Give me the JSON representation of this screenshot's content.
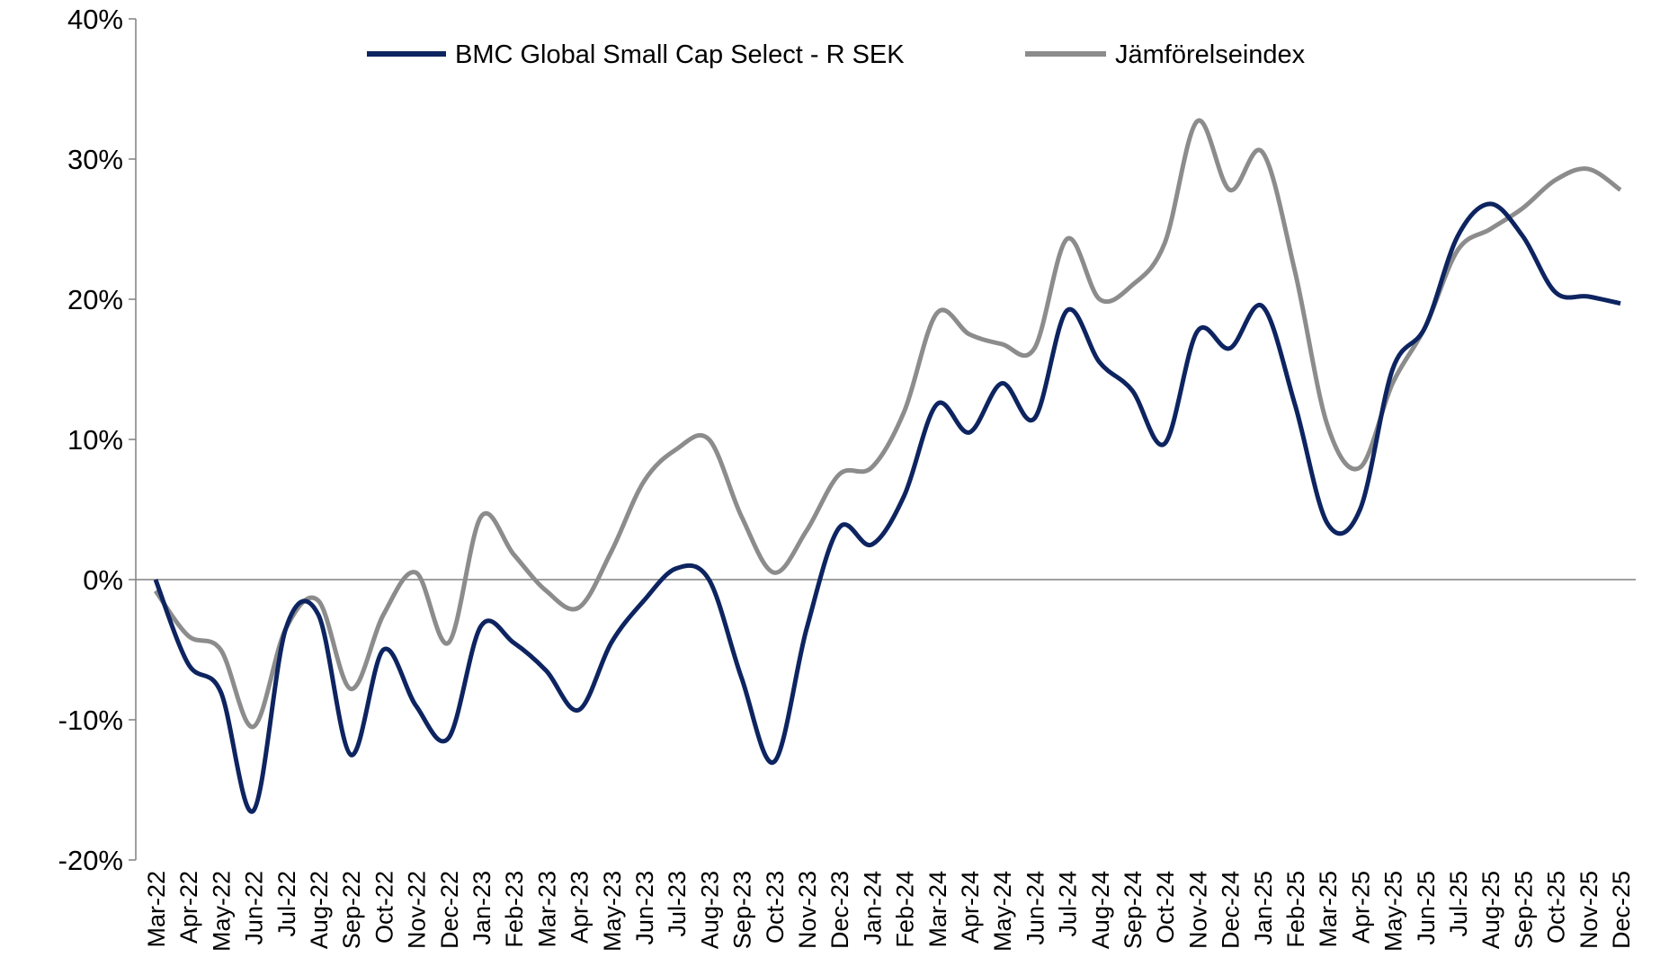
{
  "chart_data": {
    "type": "line",
    "title": "",
    "xlabel": "",
    "ylabel": "",
    "ylim": [
      -20,
      40
    ],
    "yticks": [
      "-20%",
      "-10%",
      "0%",
      "10%",
      "20%",
      "30%",
      "40%"
    ],
    "ytick_values": [
      -20,
      -10,
      0,
      10,
      20,
      30,
      40
    ],
    "legend_position": "top",
    "x": [
      "Mar-22",
      "Apr-22",
      "May-22",
      "Jun-22",
      "Jul-22",
      "Aug-22",
      "Sep-22",
      "Oct-22",
      "Nov-22",
      "Dec-22",
      "Jan-23",
      "Feb-23",
      "Mar-23",
      "Apr-23",
      "May-23",
      "Jun-23",
      "Jul-23",
      "Aug-23",
      "Sep-23",
      "Oct-23",
      "Nov-23",
      "Dec-23",
      "Jan-24",
      "Feb-24",
      "Mar-24",
      "Apr-24",
      "May-24",
      "Jun-24",
      "Jul-24",
      "Aug-24",
      "Sep-24",
      "Oct-24",
      "Nov-24",
      "Dec-24",
      "Jan-25",
      "Feb-25",
      "Mar-25",
      "Apr-25",
      "May-25",
      "Jun-25",
      "Jul-25",
      "Aug-25",
      "Sep-25",
      "Oct-25",
      "Nov-25",
      "Dec-25"
    ],
    "series": [
      {
        "name": "BMC Global Small Cap Select - R SEK",
        "color": "#0d2460",
        "values": [
          0,
          -6,
          -8,
          -16.5,
          -3.5,
          -2.5,
          -12.5,
          -5,
          -9,
          -11.3,
          -3.3,
          -4.5,
          -6.5,
          -9.3,
          -4.5,
          -1.5,
          0.8,
          0,
          -7,
          -13,
          -3.5,
          3.7,
          2.5,
          6,
          12.5,
          10.5,
          14,
          11.5,
          19.2,
          15.5,
          13.5,
          9.7,
          17.7,
          16.5,
          19.5,
          12.5,
          4,
          5,
          15,
          18,
          24.5,
          26.8,
          24.5,
          20.5,
          20.2,
          19.7
        ]
      },
      {
        "name": "Jämförelseindex",
        "color": "#8c8c8c",
        "values": [
          -0.8,
          -4,
          -5,
          -10.5,
          -3.5,
          -1.5,
          -7.8,
          -2.5,
          0.5,
          -4.5,
          4.5,
          1.8,
          -0.8,
          -2,
          2,
          7,
          9.3,
          10,
          4.5,
          0.5,
          3.5,
          7.5,
          8,
          12,
          19,
          17.5,
          16.8,
          16.5,
          24.3,
          20,
          21,
          24,
          32.7,
          27.8,
          30.5,
          22,
          11,
          8,
          14,
          18,
          23.5,
          25,
          26.5,
          28.5,
          29.3,
          27.8
        ]
      }
    ]
  }
}
